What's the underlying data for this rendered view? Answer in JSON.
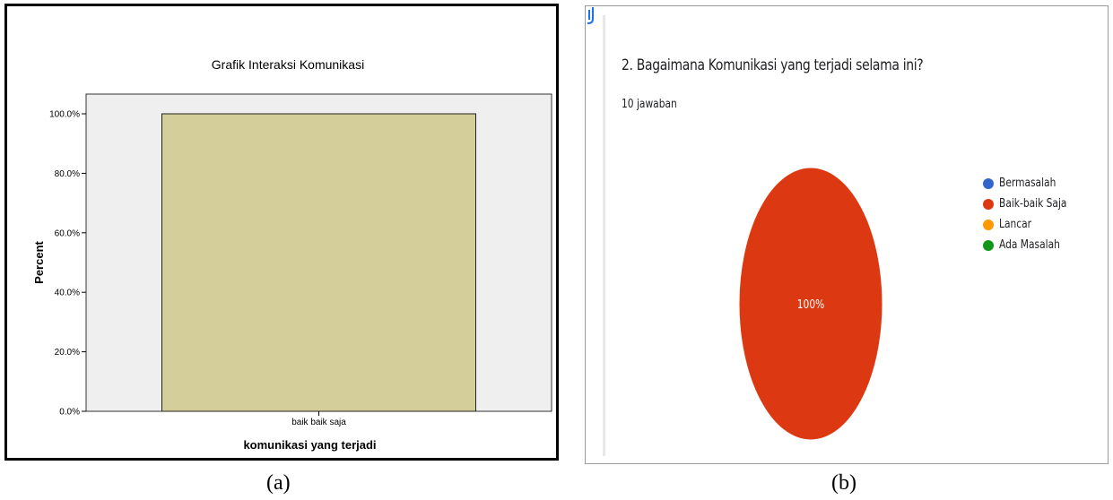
{
  "panel_a": {
    "caption": "(a)",
    "title": "Grafik Interaksi Komunikasi",
    "colors": {
      "bar": "#d3ce9a",
      "plot_bg": "#efefef"
    }
  },
  "panel_b": {
    "caption": "(b)",
    "question": "2. Bagaimana Komunikasi yang terjadi selama ini?",
    "response_count": "10 jawaban",
    "icons": [
      "copy-icon"
    ],
    "legend": [
      {
        "label": "Bermasalah",
        "color": "#3366cc"
      },
      {
        "label": "Baik-baik Saja",
        "color": "#dc3912"
      },
      {
        "label": "Lancar",
        "color": "#ff9900"
      },
      {
        "label": "Ada Masalah",
        "color": "#109618"
      }
    ]
  },
  "chart_data": [
    {
      "type": "bar",
      "title": "Grafik Interaksi Komunikasi",
      "categories": [
        "baik baik saja"
      ],
      "values": [
        100.0
      ],
      "xlabel": "komunikasi yang terjadi",
      "ylabel": "Percent",
      "ylim": [
        0,
        100
      ],
      "yticks": [
        "0.0%",
        "20.0%",
        "40.0%",
        "60.0%",
        "80.0%",
        "100.0%"
      ],
      "grid": false
    },
    {
      "type": "pie",
      "categories": [
        "Bermasalah",
        "Baik-baik Saja",
        "Lancar",
        "Ada Masalah"
      ],
      "values": [
        0,
        100,
        0,
        0
      ],
      "data_labels": [
        "",
        "100%",
        "",
        ""
      ],
      "legend": "right"
    }
  ]
}
